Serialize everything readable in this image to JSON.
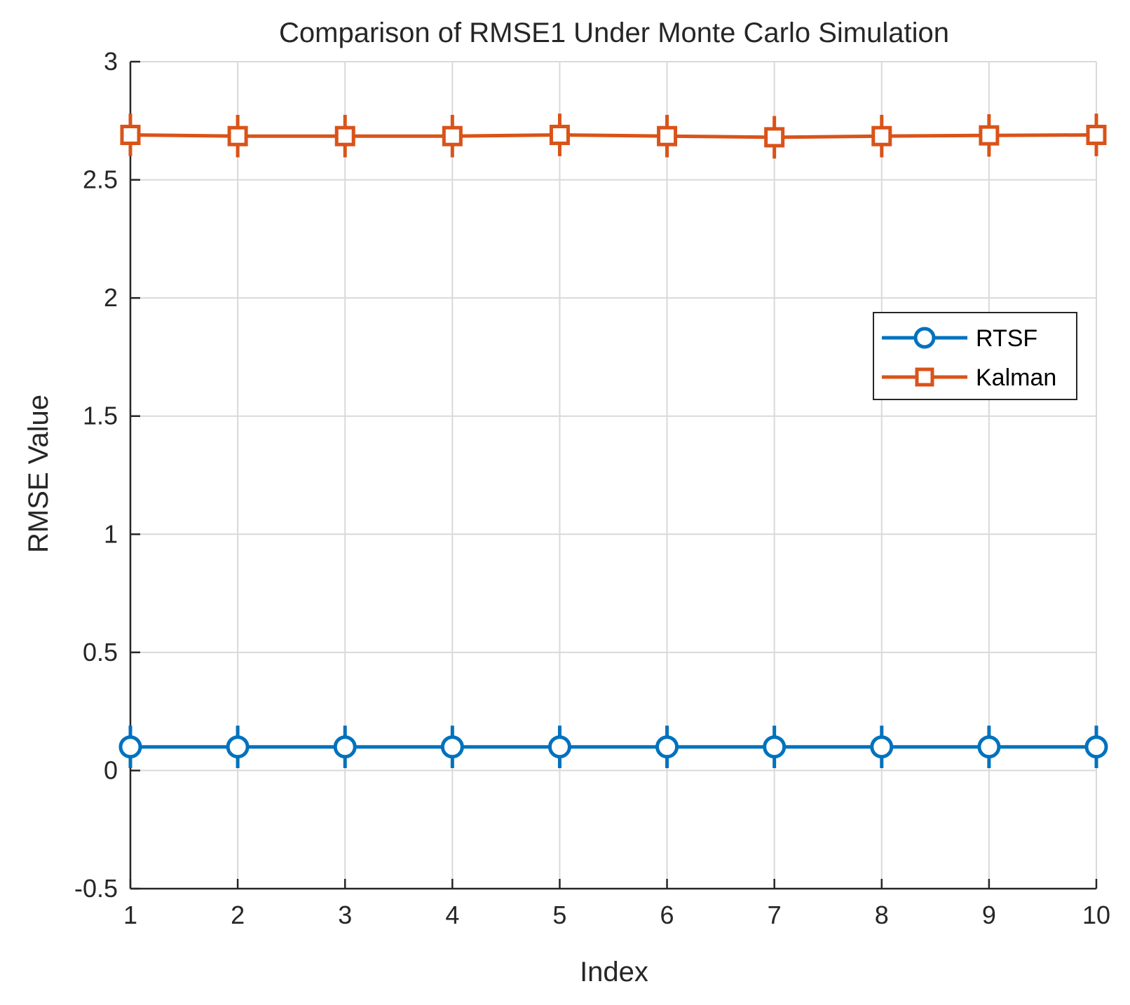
{
  "chart_data": {
    "type": "line",
    "title": "Comparison of RMSE1 Under Monte Carlo Simulation",
    "xlabel": "Index",
    "ylabel": "RMSE Value",
    "x": [
      1,
      2,
      3,
      4,
      5,
      6,
      7,
      8,
      9,
      10
    ],
    "xlim": [
      1,
      10
    ],
    "ylim": [
      -0.5,
      3
    ],
    "xticks": [
      "1",
      "2",
      "3",
      "4",
      "5",
      "6",
      "7",
      "8",
      "9",
      "10"
    ],
    "yticks": [
      "-0.5",
      "0",
      "0.5",
      "1",
      "1.5",
      "2",
      "2.5",
      "3"
    ],
    "ytick_values": [
      -0.5,
      0,
      0.5,
      1,
      1.5,
      2,
      2.5,
      3
    ],
    "grid": true,
    "legend_position": "right",
    "series": [
      {
        "name": "RTSF",
        "marker": "circle",
        "color": "#0072BD",
        "values": [
          0.1,
          0.1,
          0.1,
          0.1,
          0.1,
          0.1,
          0.1,
          0.1,
          0.1,
          0.1
        ],
        "error": [
          0.09,
          0.09,
          0.09,
          0.09,
          0.09,
          0.09,
          0.09,
          0.09,
          0.09,
          0.09
        ]
      },
      {
        "name": "Kalman",
        "marker": "square",
        "color": "#D95319",
        "values": [
          2.69,
          2.685,
          2.685,
          2.685,
          2.69,
          2.685,
          2.68,
          2.685,
          2.688,
          2.69
        ],
        "error": [
          0.09,
          0.09,
          0.09,
          0.09,
          0.09,
          0.09,
          0.09,
          0.09,
          0.09,
          0.09
        ]
      }
    ]
  }
}
